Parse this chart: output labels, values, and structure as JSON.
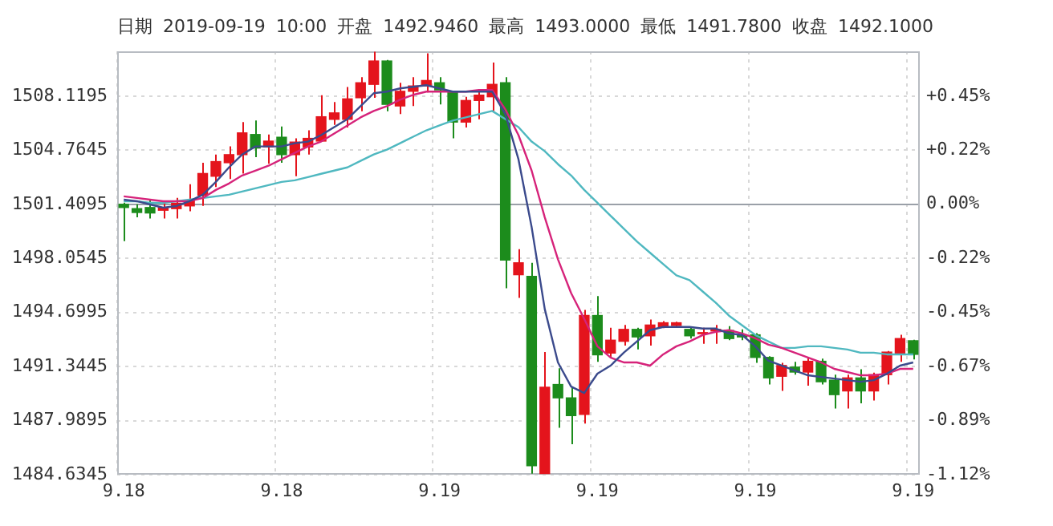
{
  "chart_data": {
    "type": "candlestick",
    "title": "日期 2019-09-19 10:00 开盘 1492.9460 最高 1493.0000 最低 1491.7800 收盘 1492.1000",
    "categories": [
      "9.18",
      null,
      null,
      null,
      null,
      null,
      null,
      null,
      null,
      null,
      null,
      null,
      "9.18",
      null,
      null,
      null,
      null,
      null,
      null,
      null,
      null,
      null,
      null,
      null,
      "9.19",
      null,
      null,
      null,
      null,
      null,
      null,
      null,
      null,
      null,
      null,
      null,
      "9.19",
      null,
      null,
      null,
      null,
      null,
      null,
      null,
      null,
      null,
      null,
      null,
      "9.19",
      null,
      null,
      null,
      null,
      null,
      null,
      null,
      null,
      null,
      null,
      null,
      "9.19"
    ],
    "ohlc": [
      [
        1501.41,
        1501.51,
        1499.12,
        1501.21
      ],
      [
        1501.14,
        1501.41,
        1500.6,
        1500.9
      ],
      [
        1501.21,
        1501.71,
        1500.53,
        1500.87
      ],
      [
        1501.04,
        1501.64,
        1500.53,
        1501.21
      ],
      [
        1501.14,
        1501.81,
        1500.53,
        1501.47
      ],
      [
        1501.31,
        1502.65,
        1500.97,
        1501.64
      ],
      [
        1501.98,
        1503.99,
        1501.31,
        1503.32
      ],
      [
        1503.15,
        1504.49,
        1502.48,
        1504.06
      ],
      [
        1503.99,
        1505.0,
        1502.98,
        1504.49
      ],
      [
        1504.49,
        1506.51,
        1503.32,
        1505.84
      ],
      [
        1505.74,
        1506.61,
        1504.33,
        1504.9
      ],
      [
        1504.97,
        1505.74,
        1503.92,
        1505.33
      ],
      [
        1505.57,
        1506.24,
        1503.99,
        1504.49
      ],
      [
        1504.49,
        1505.5,
        1503.15,
        1505.27
      ],
      [
        1504.97,
        1506.0,
        1504.49,
        1505.5
      ],
      [
        1505.33,
        1508.18,
        1505.33,
        1506.84
      ],
      [
        1506.68,
        1507.75,
        1506.34,
        1507.08
      ],
      [
        1506.68,
        1508.69,
        1506.17,
        1507.95
      ],
      [
        1508.02,
        1509.29,
        1507.18,
        1508.95
      ],
      [
        1508.85,
        1510.87,
        1508.02,
        1510.3
      ],
      [
        1510.3,
        1510.37,
        1507.18,
        1507.61
      ],
      [
        1507.51,
        1508.95,
        1507.01,
        1508.42
      ],
      [
        1508.42,
        1509.29,
        1507.51,
        1508.75
      ],
      [
        1508.75,
        1510.77,
        1508.35,
        1509.09
      ],
      [
        1508.95,
        1509.29,
        1507.61,
        1508.51
      ],
      [
        1508.42,
        1508.42,
        1505.5,
        1506.51
      ],
      [
        1506.51,
        1508.08,
        1506.17,
        1507.85
      ],
      [
        1507.85,
        1508.42,
        1506.68,
        1508.18
      ],
      [
        1508.08,
        1510.2,
        1507.18,
        1508.85
      ],
      [
        1508.95,
        1509.29,
        1496.2,
        1497.95
      ],
      [
        1497.04,
        1498.62,
        1495.6,
        1497.78
      ],
      [
        1496.94,
        1497.78,
        1484.7,
        1485.19
      ],
      [
        1484.7,
        1492.24,
        1484.7,
        1490.06
      ],
      [
        1490.23,
        1491.24,
        1487.54,
        1489.4
      ],
      [
        1489.4,
        1490.06,
        1486.53,
        1488.3
      ],
      [
        1488.37,
        1494.86,
        1487.8,
        1494.51
      ],
      [
        1494.51,
        1495.71,
        1491.64,
        1492.07
      ],
      [
        1492.18,
        1493.75,
        1491.91,
        1492.98
      ],
      [
        1492.91,
        1493.92,
        1492.64,
        1493.65
      ],
      [
        1493.65,
        1493.75,
        1492.41,
        1493.18
      ],
      [
        1493.25,
        1494.26,
        1492.64,
        1493.92
      ],
      [
        1493.82,
        1494.16,
        1493.72,
        1494.06
      ],
      [
        1493.89,
        1494.12,
        1493.82,
        1494.06
      ],
      [
        1493.65,
        1493.75,
        1493.08,
        1493.25
      ],
      [
        1493.38,
        1493.75,
        1492.75,
        1493.45
      ],
      [
        1493.55,
        1493.92,
        1492.75,
        1493.65
      ],
      [
        1493.58,
        1493.85,
        1492.98,
        1493.08
      ],
      [
        1493.31,
        1493.65,
        1492.98,
        1493.18
      ],
      [
        1493.31,
        1493.41,
        1491.57,
        1491.91
      ],
      [
        1491.91,
        1491.98,
        1490.23,
        1490.64
      ],
      [
        1490.74,
        1491.57,
        1489.83,
        1491.41
      ],
      [
        1491.31,
        1491.64,
        1490.84,
        1491.0
      ],
      [
        1491.0,
        1491.91,
        1490.16,
        1491.67
      ],
      [
        1491.67,
        1491.84,
        1490.23,
        1490.4
      ],
      [
        1490.5,
        1490.84,
        1488.74,
        1489.6
      ],
      [
        1489.83,
        1490.84,
        1488.74,
        1490.64
      ],
      [
        1490.64,
        1491.17,
        1489.06,
        1489.83
      ],
      [
        1489.83,
        1490.97,
        1489.23,
        1490.84
      ],
      [
        1490.84,
        1492.31,
        1490.23,
        1492.24
      ],
      [
        1492.18,
        1493.31,
        1491.64,
        1493.08
      ],
      [
        1492.946,
        1493.0,
        1491.78,
        1492.1
      ]
    ],
    "colors": [
      "#1c8c1c",
      "#1c8c1c",
      "#1c8c1c",
      "#e4141c",
      "#e4141c",
      "#e4141c",
      "#e4141c",
      "#e4141c",
      "#e4141c",
      "#e4141c",
      "#1c8c1c",
      "#e4141c",
      "#1c8c1c",
      "#e4141c",
      "#e4141c",
      "#e4141c",
      "#e4141c",
      "#e4141c",
      "#e4141c",
      "#e4141c",
      "#1c8c1c",
      "#e4141c",
      "#e4141c",
      "#e4141c",
      "#1c8c1c",
      "#1c8c1c",
      "#e4141c",
      "#e4141c",
      "#e4141c",
      "#1c8c1c",
      "#e4141c",
      "#1c8c1c",
      "#e4141c",
      "#1c8c1c",
      "#1c8c1c",
      "#e4141c",
      "#1c8c1c",
      "#e4141c",
      "#e4141c",
      "#1c8c1c",
      "#e4141c",
      "#e4141c",
      "#e4141c",
      "#1c8c1c",
      "#e4141c",
      "#e4141c",
      "#1c8c1c",
      "#1c8c1c",
      "#1c8c1c",
      "#1c8c1c",
      "#e4141c",
      "#1c8c1c",
      "#e4141c",
      "#1c8c1c",
      "#1c8c1c",
      "#e4141c",
      "#1c8c1c",
      "#e4141c",
      "#e4141c",
      "#e4141c",
      "#1c8c1c"
    ],
    "series": [
      {
        "type": "line",
        "color": "#3b4a8c",
        "values": [
          1501.7,
          1501.6,
          1501.4,
          1501.2,
          1501.3,
          1501.6,
          1502.0,
          1502.8,
          1503.7,
          1504.5,
          1505.0,
          1505.0,
          1505.0,
          1505.2,
          1505.3,
          1505.7,
          1506.2,
          1506.7,
          1507.5,
          1508.3,
          1508.4,
          1508.6,
          1508.7,
          1508.8,
          1508.6,
          1508.4,
          1508.4,
          1508.4,
          1508.4,
          1507.0,
          1504.2,
          1500.0,
          1494.9,
          1491.6,
          1490.1,
          1489.7,
          1490.9,
          1491.4,
          1492.2,
          1492.9,
          1493.6,
          1493.8,
          1493.8,
          1493.8,
          1493.7,
          1493.7,
          1493.4,
          1493.3,
          1492.6,
          1491.7,
          1491.4,
          1491.1,
          1490.8,
          1490.7,
          1490.6,
          1490.5,
          1490.4,
          1490.5,
          1490.9,
          1491.4,
          1491.6
        ]
      },
      {
        "type": "line",
        "color": "#d6237a",
        "values": [
          1501.9,
          1501.8,
          1501.7,
          1501.6,
          1501.6,
          1501.6,
          1501.8,
          1502.3,
          1502.7,
          1503.2,
          1503.5,
          1503.8,
          1504.2,
          1504.6,
          1505.0,
          1505.3,
          1505.8,
          1506.3,
          1506.8,
          1507.2,
          1507.5,
          1507.9,
          1508.2,
          1508.4,
          1508.4,
          1508.4,
          1508.4,
          1508.5,
          1508.5,
          1507.3,
          1505.7,
          1503.5,
          1500.6,
          1498.0,
          1495.9,
          1494.3,
          1492.6,
          1491.9,
          1491.6,
          1491.6,
          1491.4,
          1492.1,
          1492.6,
          1492.9,
          1493.3,
          1493.5,
          1493.6,
          1493.4,
          1493.1,
          1492.7,
          1492.5,
          1492.2,
          1491.9,
          1491.6,
          1491.2,
          1491.0,
          1490.8,
          1490.8,
          1490.9,
          1491.2,
          1491.2
        ]
      },
      {
        "type": "line",
        "color": "#4fb8c0",
        "values": [
          1501.6,
          1501.6,
          1501.5,
          1501.5,
          1501.6,
          1501.7,
          1501.8,
          1501.9,
          1502.0,
          1502.2,
          1502.4,
          1502.6,
          1502.8,
          1502.9,
          1503.1,
          1503.3,
          1503.5,
          1503.7,
          1504.1,
          1504.5,
          1504.8,
          1505.2,
          1505.6,
          1506.0,
          1506.3,
          1506.6,
          1506.8,
          1507.0,
          1507.2,
          1506.7,
          1506.2,
          1505.3,
          1504.7,
          1503.9,
          1503.2,
          1502.3,
          1501.5,
          1500.7,
          1499.9,
          1499.1,
          1498.4,
          1497.7,
          1497.0,
          1496.7,
          1496.0,
          1495.3,
          1494.5,
          1493.9,
          1493.3,
          1492.9,
          1492.5,
          1492.5,
          1492.6,
          1492.6,
          1492.5,
          1492.4,
          1492.2,
          1492.2,
          1492.1,
          1492.1,
          1492.1
        ]
      }
    ],
    "ylim": [
      1484.6345,
      1510.9
    ],
    "yticks": [
      1484.6345,
      1487.9895,
      1491.3445,
      1494.6995,
      1498.0545,
      1501.4095,
      1504.7645,
      1508.1195
    ],
    "y2lim": [
      -1.1173,
      0.6321
    ],
    "y2ticks": [
      {
        "value": -1.1173,
        "label": "-1.12%"
      },
      {
        "value": -0.8938,
        "label": "-0.89%"
      },
      {
        "value": -0.6704,
        "label": "-0.67%"
      },
      {
        "value": -0.4469,
        "label": "-0.45%"
      },
      {
        "value": -0.2235,
        "label": "-0.22%"
      },
      {
        "value": 0,
        "label": "0.00%"
      },
      {
        "value": 0.2235,
        "label": "+0.22%"
      },
      {
        "value": 0.4469,
        "label": "+0.45%"
      }
    ],
    "ref_lines": [
      {
        "axis": "y2",
        "value": 0,
        "color": "#9aa0a8"
      }
    ],
    "grid": true,
    "marker": "none"
  }
}
